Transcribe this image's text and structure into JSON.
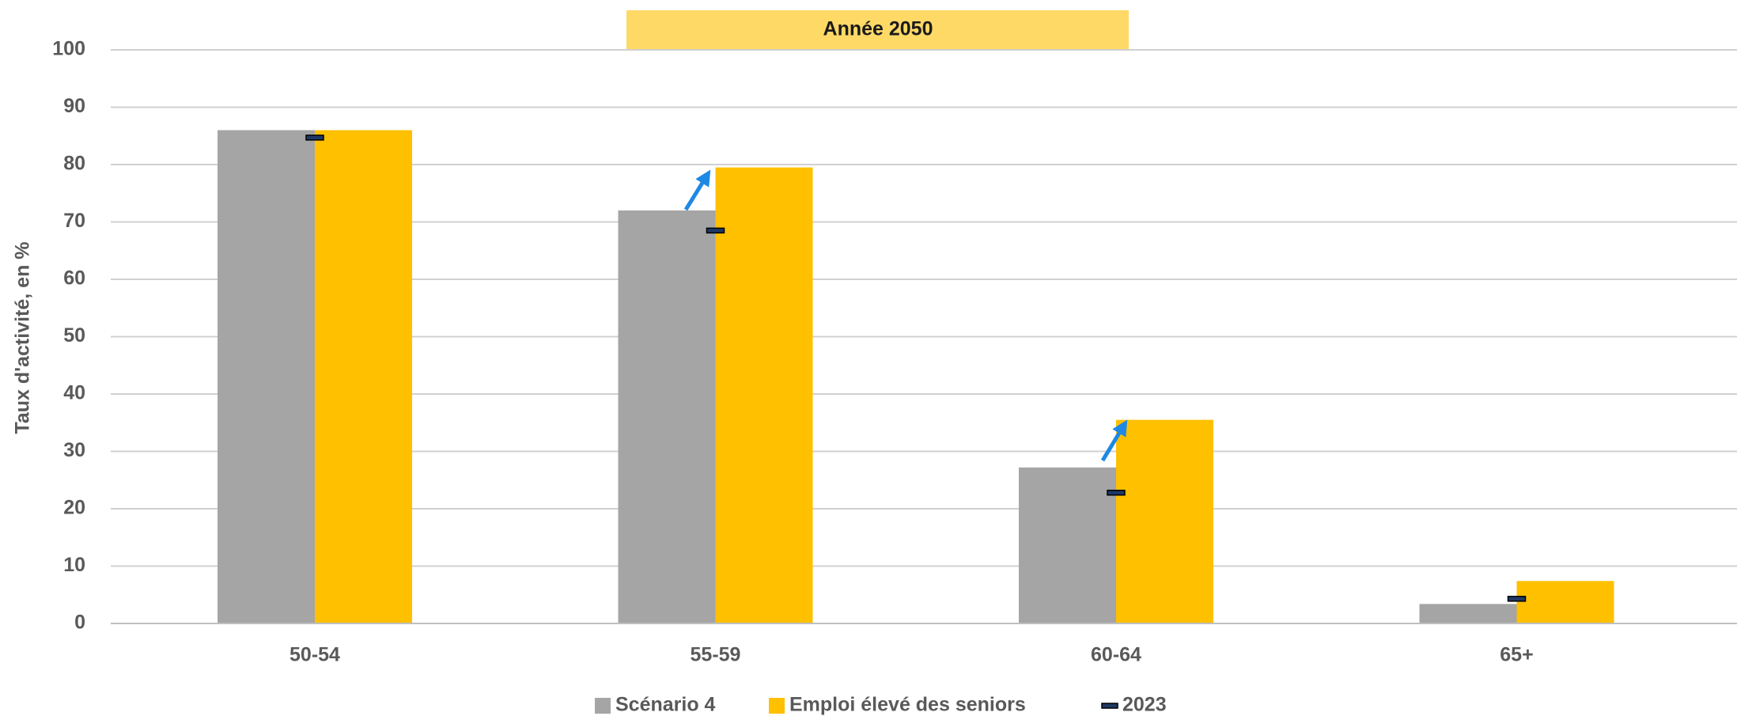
{
  "chart_data": {
    "type": "bar",
    "title": "Année 2050",
    "y_label": "Taux d'activité, en %",
    "categories": [
      "50-54",
      "55-59",
      "60-64",
      "65+"
    ],
    "series": [
      {
        "name": "Scénario 4",
        "color": "#a5a5a5",
        "values": [
          86,
          72,
          27.2,
          3.4
        ]
      },
      {
        "name": "Emploi élevé des seniors",
        "color": "#ffc000",
        "values": [
          86,
          79.5,
          35.5,
          7.4
        ]
      },
      {
        "name": "2023",
        "color": "#1f3864",
        "style": "dash",
        "values": [
          84.7,
          68.5,
          22.8,
          4.3
        ]
      }
    ],
    "ylim": [
      0,
      100
    ],
    "yticks": [
      0,
      10,
      20,
      30,
      40,
      50,
      60,
      70,
      80,
      90,
      100
    ],
    "grid": true,
    "legend": "bottom"
  }
}
